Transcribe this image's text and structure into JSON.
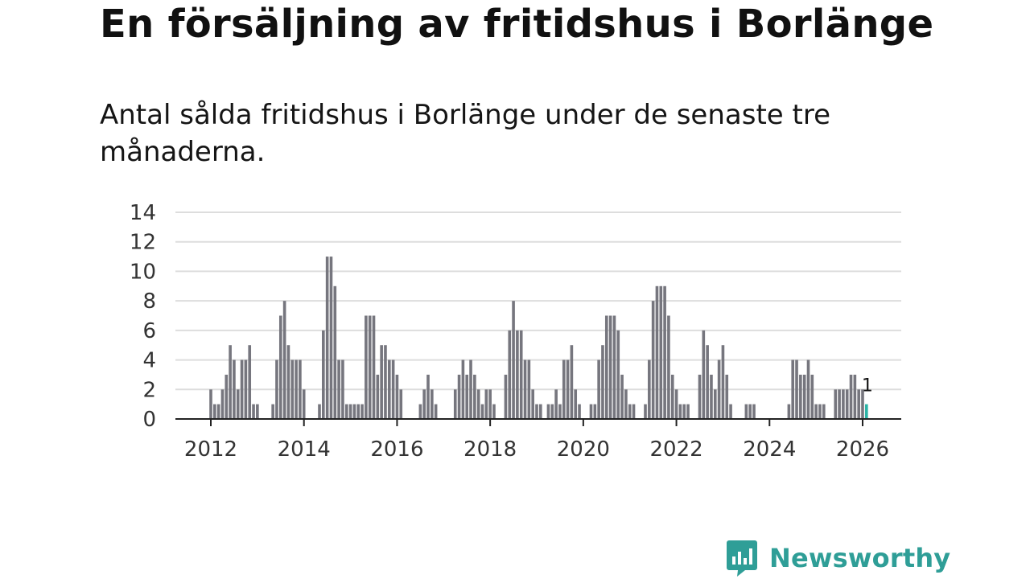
{
  "title": "En försäljning av fritidshus i Borlänge",
  "subtitle": "Antal sålda fritidshus i Borlänge under de senaste tre månaderna.",
  "brand": {
    "name": "Newsworthy",
    "logo_icon": "newsworthy-bar-chart-icon",
    "color": "#2f9e97"
  },
  "colors": {
    "bar": "#76767e",
    "highlight": "#2bb3a6",
    "grid": "#dddddd",
    "axis": "#222222"
  },
  "chart_data": {
    "type": "bar",
    "title": "En försäljning av fritidshus i Borlänge",
    "xlabel": "",
    "ylabel": "",
    "ylim": [
      0,
      14
    ],
    "yticks": [
      0,
      2,
      4,
      6,
      8,
      10,
      12,
      14
    ],
    "xticks": [
      2012,
      2014,
      2016,
      2018,
      2020,
      2022,
      2024,
      2026
    ],
    "x_start": "2012-01",
    "x_step": "month",
    "grid": true,
    "highlight_last": true,
    "value_label": "1",
    "values": [
      2,
      1,
      1,
      2,
      3,
      5,
      4,
      2,
      4,
      4,
      5,
      1,
      1,
      0,
      0,
      0,
      1,
      4,
      7,
      8,
      5,
      4,
      4,
      4,
      2,
      0,
      0,
      0,
      1,
      6,
      11,
      11,
      9,
      4,
      4,
      1,
      1,
      1,
      1,
      1,
      7,
      7,
      7,
      3,
      5,
      5,
      4,
      4,
      3,
      2,
      0,
      0,
      0,
      0,
      1,
      2,
      3,
      2,
      1,
      0,
      0,
      0,
      0,
      2,
      3,
      4,
      3,
      4,
      3,
      2,
      1,
      2,
      2,
      1,
      0,
      0,
      3,
      6,
      8,
      6,
      6,
      4,
      4,
      2,
      1,
      1,
      0,
      1,
      1,
      2,
      1,
      4,
      4,
      5,
      2,
      1,
      0,
      0,
      1,
      1,
      4,
      5,
      7,
      7,
      7,
      6,
      3,
      2,
      1,
      1,
      0,
      0,
      1,
      4,
      8,
      9,
      9,
      9,
      7,
      3,
      2,
      1,
      1,
      1,
      0,
      0,
      3,
      6,
      5,
      3,
      2,
      4,
      5,
      3,
      1,
      0,
      0,
      0,
      1,
      1,
      1,
      0,
      0,
      0,
      0,
      0,
      0,
      0,
      0,
      1,
      4,
      4,
      3,
      3,
      4,
      3,
      1,
      1,
      1,
      0,
      0,
      2,
      2,
      2,
      2,
      3,
      3,
      2,
      2,
      1
    ]
  }
}
